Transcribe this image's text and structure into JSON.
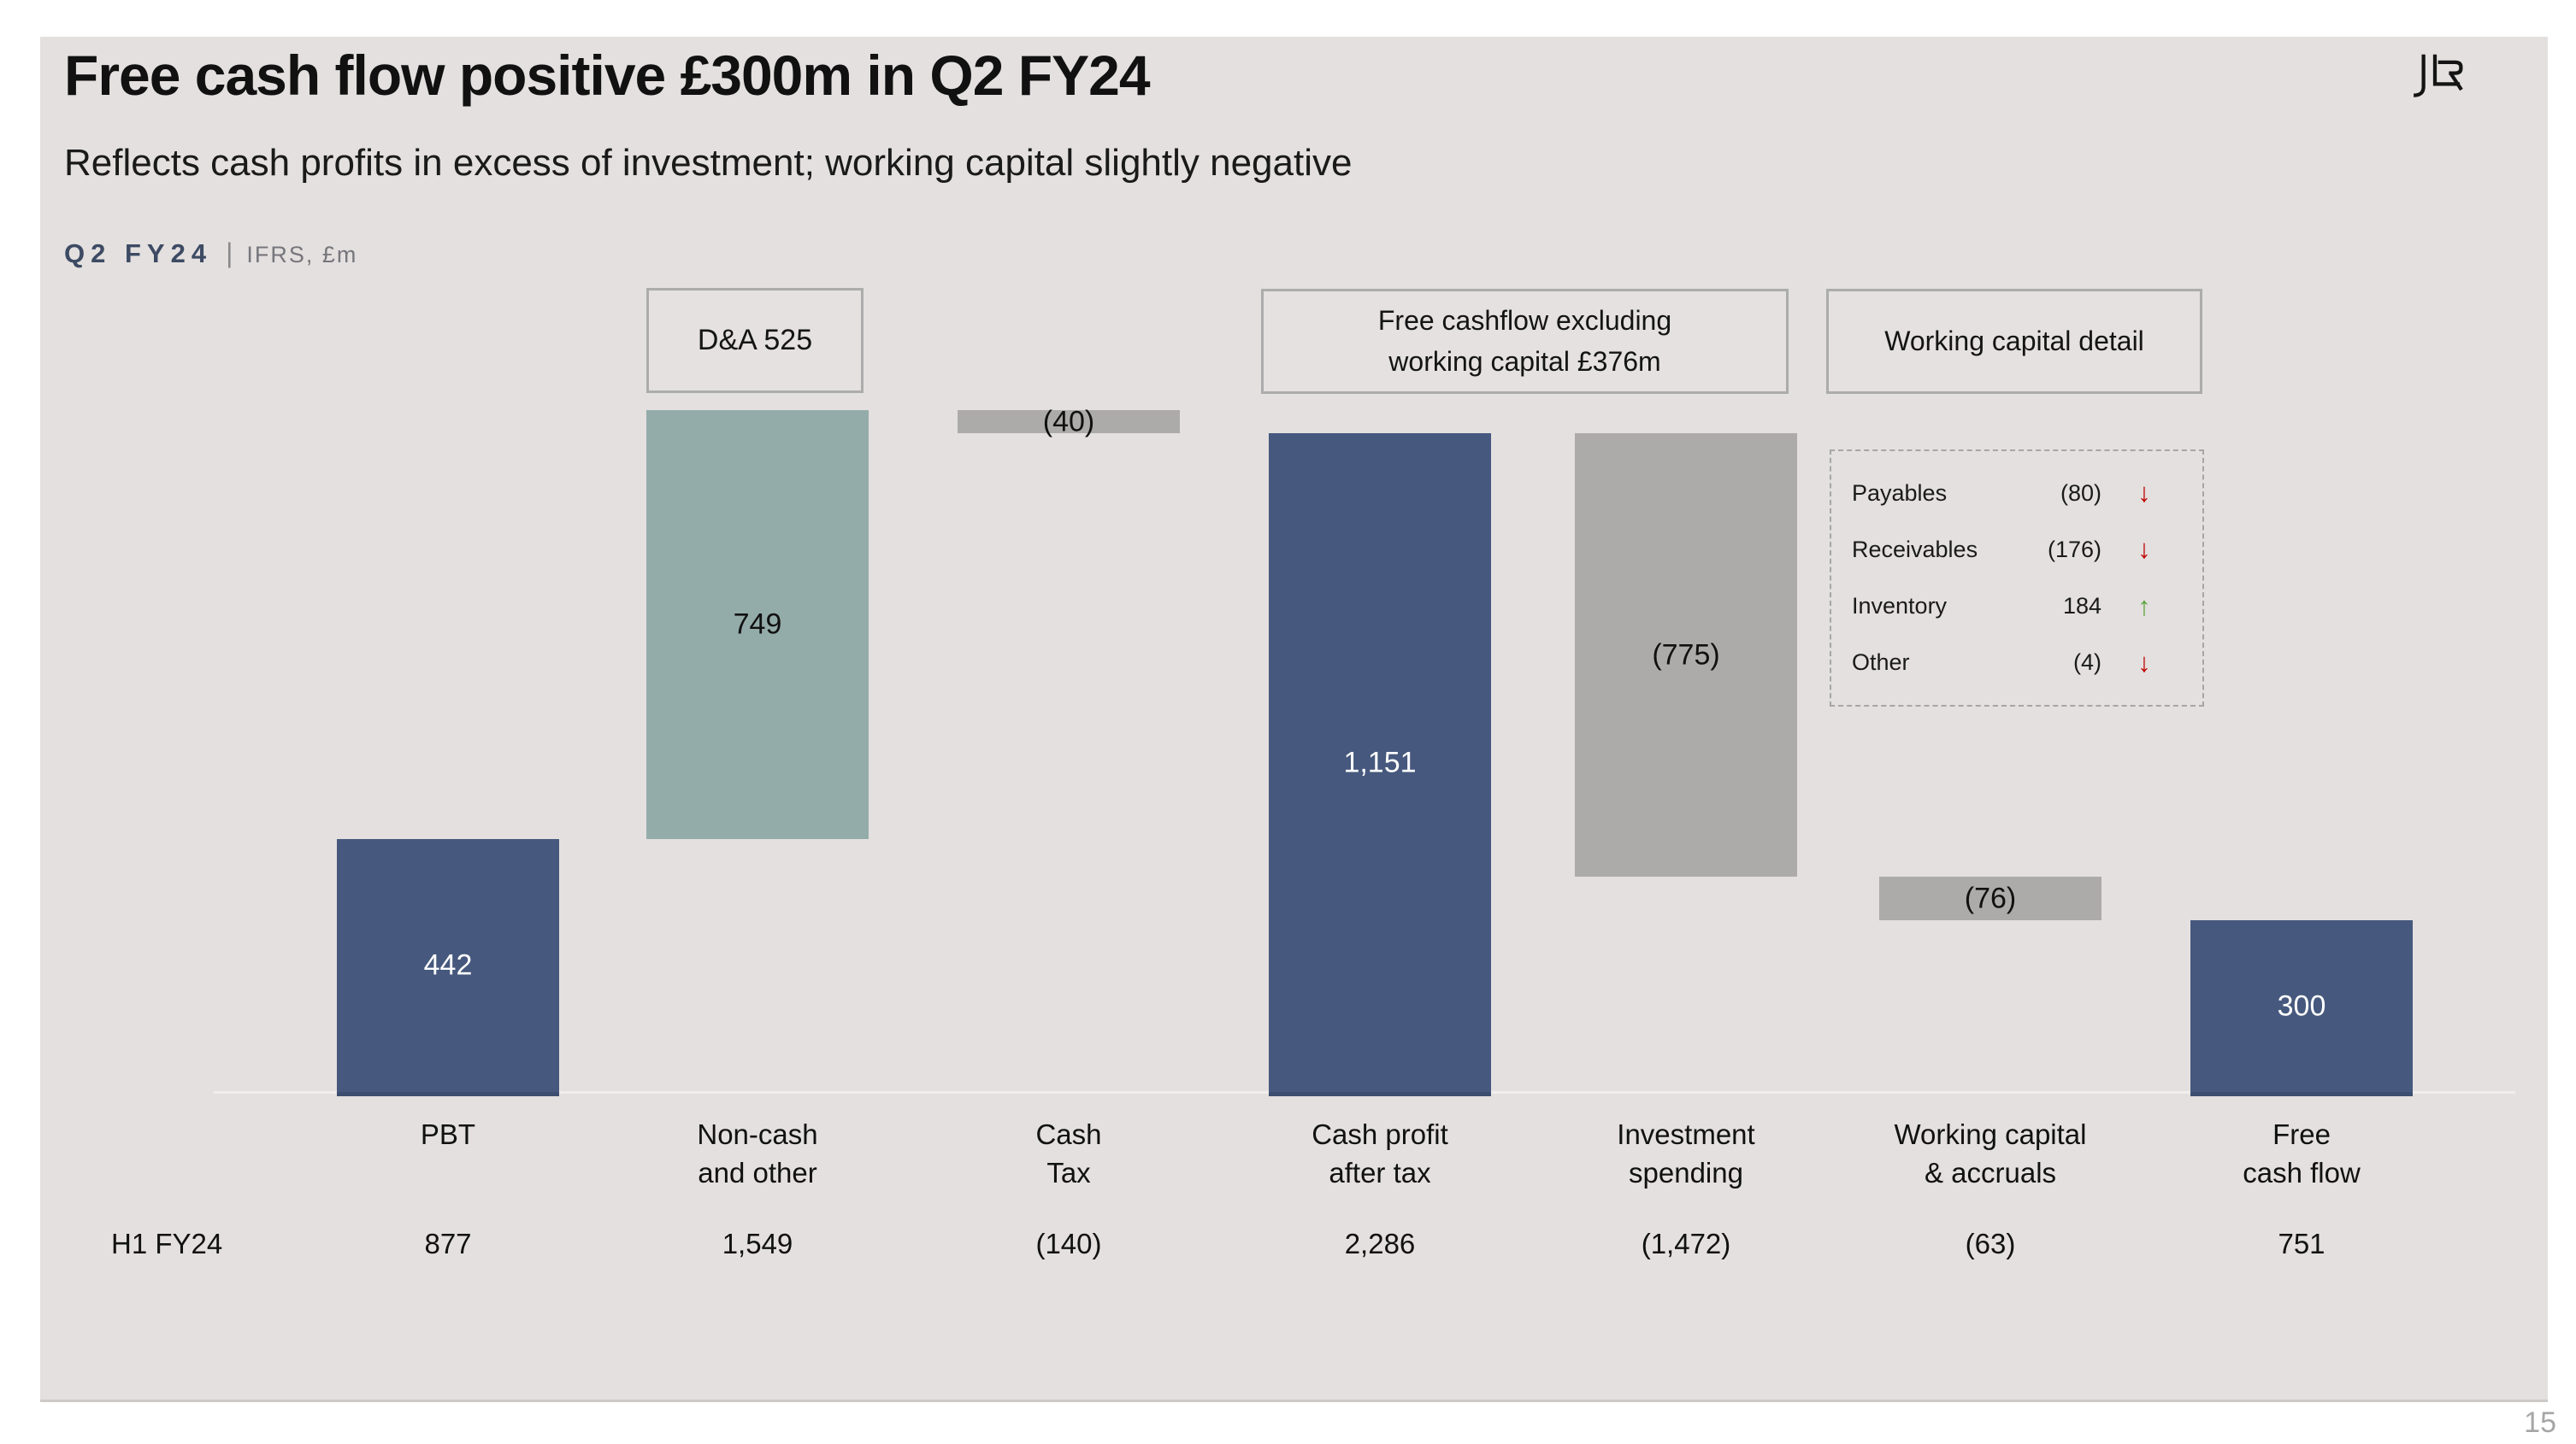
{
  "slide": {
    "title": "Free cash flow positive £300m in Q2 FY24",
    "subtitle": "Reflects cash profits in excess of investment; working capital slightly negative",
    "period_tag": "Q2 FY24",
    "separator": "|",
    "basis_tag": "IFRS, £m",
    "logo_name": "jlr-logo",
    "page_number": "15"
  },
  "callouts": {
    "da_box": "D&A 525",
    "fcf_box_line1": "Free cashflow excluding",
    "fcf_box_line2": "working capital £376m",
    "wc_box_title": "Working  capital detail"
  },
  "working_capital_detail": {
    "rows": [
      {
        "label": "Payables",
        "value": "(80)",
        "trend": "down",
        "arrow": "↓"
      },
      {
        "label": "Receivables",
        "value": "(176)",
        "trend": "down",
        "arrow": "↓"
      },
      {
        "label": "Inventory",
        "value": "184",
        "trend": "up",
        "arrow": "↑"
      },
      {
        "label": "Other",
        "value": "(4)",
        "trend": "down",
        "arrow": "↓"
      }
    ]
  },
  "h1_row": {
    "label": "H1 FY24"
  },
  "chart_data": {
    "type": "bar",
    "subtype": "waterfall",
    "unit": "£m",
    "title": "Q2 FY24 | IFRS, £m",
    "categories": [
      "PBT",
      "Non-cash and other",
      "Cash Tax",
      "Cash profit after tax",
      "Investment spending",
      "Working capital & accruals",
      "Free cash flow"
    ],
    "values": [
      442,
      749,
      -40,
      1151,
      -775,
      -76,
      300
    ],
    "ylim": [
      0,
      1191
    ],
    "grid": false,
    "legend": false,
    "y_axis_visible": false,
    "colors": {
      "blue": "#46587D",
      "teal": "#94ACA9",
      "gray": "#ACABAA"
    },
    "bars": [
      {
        "label_lines": [
          "PBT"
        ],
        "value": 442,
        "value_label": "442",
        "start": 0,
        "end": 442,
        "color": "blue",
        "h1_fy24": "877"
      },
      {
        "label_lines": [
          "Non-cash",
          "and other"
        ],
        "value": 749,
        "value_label": "749",
        "start": 442,
        "end": 1191,
        "color": "teal",
        "h1_fy24": "1,549"
      },
      {
        "label_lines": [
          "Cash",
          "Tax"
        ],
        "value": -40,
        "value_label": "(40)",
        "start": 1191,
        "end": 1151,
        "color": "gray",
        "h1_fy24": "(140)"
      },
      {
        "label_lines": [
          "Cash profit",
          "after tax"
        ],
        "value": 1151,
        "value_label": "1,151",
        "start": 0,
        "end": 1151,
        "color": "blue",
        "h1_fy24": "2,286"
      },
      {
        "label_lines": [
          "Investment",
          "spending"
        ],
        "value": -775,
        "value_label": "(775)",
        "start": 1151,
        "end": 376,
        "color": "gray",
        "h1_fy24": "(1,472)"
      },
      {
        "label_lines": [
          "Working capital",
          "& accruals"
        ],
        "value": -76,
        "value_label": "(76)",
        "start": 376,
        "end": 300,
        "color": "gray",
        "h1_fy24": "(63)"
      },
      {
        "label_lines": [
          "Free",
          "cash flow"
        ],
        "value": 300,
        "value_label": "300",
        "start": 0,
        "end": 300,
        "color": "blue",
        "h1_fy24": "751"
      }
    ]
  }
}
